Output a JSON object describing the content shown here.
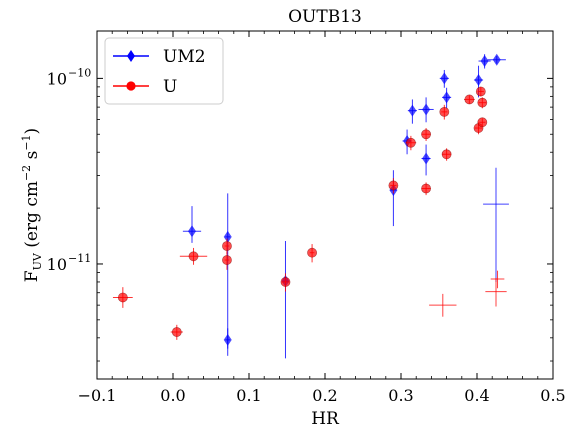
{
  "chart_data": {
    "type": "scatter",
    "title": "OUTB13",
    "xlabel": "HR",
    "ylabel": "F_UV (erg cm^-2 s^-1)",
    "ylabel_display": {
      "main": "F",
      "sub": "UV",
      "rest": " (erg cm",
      "sup1": "−2",
      "mid": " s",
      "sup2": "−1",
      "end": ")"
    },
    "xlim": [
      -0.1,
      0.5
    ],
    "ylim": [
      2.4e-12,
      1.8e-10
    ],
    "yscale": "log",
    "x_ticks": [
      -0.1,
      0.0,
      0.1,
      0.2,
      0.3,
      0.4,
      0.5
    ],
    "x_tick_labels": [
      "−0.1",
      "0.0",
      "0.1",
      "0.2",
      "0.3",
      "0.4",
      "0.5"
    ],
    "y_major_ticks": [
      1e-11,
      1e-10
    ],
    "y_tick_labels": [
      {
        "base": "10",
        "exp": "−11"
      },
      {
        "base": "10",
        "exp": "−10"
      }
    ],
    "legend": {
      "placement": "upper-left",
      "entries": [
        "UM2",
        "U"
      ]
    },
    "series": [
      {
        "name": "UM2",
        "color": "#0000ff",
        "marker": "diamond",
        "points": [
          {
            "x": 0.025,
            "y": 1.5e-11,
            "xerr": 0.012,
            "ylo": 1.3e-11,
            "yhi": 2.05e-11
          },
          {
            "x": 0.072,
            "y": 1.4e-11,
            "xerr": 0.003,
            "ylo": 3.5e-12,
            "yhi": 2.4e-11
          },
          {
            "x": 0.072,
            "y": 3.9e-12,
            "xerr": 0.003,
            "ylo": 3.2e-12,
            "yhi": 4.5e-12
          },
          {
            "x": 0.148,
            "y": 8.1e-12,
            "xerr": 0.003,
            "ylo": 3.1e-12,
            "yhi": 1.33e-11
          },
          {
            "x": 0.29,
            "y": 2.5e-11,
            "xerr": 0.004,
            "ylo": 1.6e-11,
            "yhi": 3.2e-11
          },
          {
            "x": 0.308,
            "y": 4.6e-11,
            "xerr": 0.006,
            "ylo": 3.9e-11,
            "yhi": 5.3e-11
          },
          {
            "x": 0.315,
            "y": 6.7e-11,
            "xerr": 0.006,
            "ylo": 5.7e-11,
            "yhi": 7.7e-11
          },
          {
            "x": 0.333,
            "y": 6.8e-11,
            "xerr": 0.01,
            "ylo": 5.8e-11,
            "yhi": 7.9e-11
          },
          {
            "x": 0.333,
            "y": 3.7e-11,
            "xerr": 0.006,
            "ylo": 3e-11,
            "yhi": 4.4e-11
          },
          {
            "x": 0.357,
            "y": 1e-10,
            "xerr": 0.006,
            "ylo": 8.9e-11,
            "yhi": 1.11e-10
          },
          {
            "x": 0.36,
            "y": 7.9e-11,
            "xerr": 0.006,
            "ylo": 6.9e-11,
            "yhi": 8.9e-11
          },
          {
            "x": 0.402,
            "y": 9.8e-11,
            "xerr": 0.006,
            "ylo": 7.9e-11,
            "yhi": 1.17e-10
          },
          {
            "x": 0.41,
            "y": 1.24e-10,
            "xerr": 0.008,
            "ylo": 1.13e-10,
            "yhi": 1.35e-10
          },
          {
            "x": 0.426,
            "y": 1.26e-10,
            "xerr": 0.012,
            "ylo": 1.2e-10,
            "yhi": 1.32e-10
          },
          {
            "x": 0.425,
            "y": 2.1e-11,
            "xerr": 0.017,
            "ylo": 8e-12,
            "yhi": 3.3e-11,
            "open": true
          }
        ]
      },
      {
        "name": "U",
        "color": "#ff0000",
        "marker": "circle",
        "points": [
          {
            "x": -0.066,
            "y": 6.6e-12,
            "xerr": 0.013,
            "ylo": 5.8e-12,
            "yhi": 7.5e-12
          },
          {
            "x": 0.005,
            "y": 4.3e-12,
            "xerr": 0.008,
            "ylo": 3.9e-12,
            "yhi": 4.7e-12
          },
          {
            "x": 0.027,
            "y": 1.1e-11,
            "xerr": 0.018,
            "ylo": 9.9e-12,
            "yhi": 1.22e-11
          },
          {
            "x": 0.071,
            "y": 1.25e-11,
            "xerr": 0.003,
            "ylo": 1.13e-11,
            "yhi": 1.37e-11
          },
          {
            "x": 0.071,
            "y": 1.05e-11,
            "xerr": 0.003,
            "ylo": 9.3e-12,
            "yhi": 1.17e-11
          },
          {
            "x": 0.148,
            "y": 8e-12,
            "xerr": 0.005,
            "ylo": 7.1e-12,
            "yhi": 8.9e-12
          },
          {
            "x": 0.183,
            "y": 1.15e-11,
            "xerr": 0.003,
            "ylo": 1.02e-11,
            "yhi": 1.28e-11
          },
          {
            "x": 0.29,
            "y": 2.65e-11,
            "xerr": 0.004,
            "ylo": 2.4e-11,
            "yhi": 2.9e-11
          },
          {
            "x": 0.313,
            "y": 4.5e-11,
            "xerr": 0.007,
            "ylo": 4.1e-11,
            "yhi": 4.9e-11
          },
          {
            "x": 0.333,
            "y": 5e-11,
            "xerr": 0.006,
            "ylo": 4.6e-11,
            "yhi": 5.4e-11
          },
          {
            "x": 0.333,
            "y": 2.55e-11,
            "xerr": 0.006,
            "ylo": 2.35e-11,
            "yhi": 2.75e-11
          },
          {
            "x": 0.357,
            "y": 6.6e-11,
            "xerr": 0.004,
            "ylo": 6e-11,
            "yhi": 7.2e-11
          },
          {
            "x": 0.36,
            "y": 3.9e-11,
            "xerr": 0.006,
            "ylo": 3.6e-11,
            "yhi": 4.2e-11
          },
          {
            "x": 0.39,
            "y": 7.7e-11,
            "xerr": 0.007,
            "ylo": 7.3e-11,
            "yhi": 8.1e-11
          },
          {
            "x": 0.402,
            "y": 5.4e-11,
            "xerr": 0.005,
            "ylo": 5e-11,
            "yhi": 5.8e-11
          },
          {
            "x": 0.405,
            "y": 8.5e-11,
            "xerr": 0.004,
            "ylo": 8e-11,
            "yhi": 9e-11
          },
          {
            "x": 0.407,
            "y": 7.4e-11,
            "xerr": 0.005,
            "ylo": 6.9e-11,
            "yhi": 7.9e-11
          },
          {
            "x": 0.407,
            "y": 5.8e-11,
            "xerr": 0.004,
            "ylo": 5.5e-11,
            "yhi": 6.1e-11
          },
          {
            "x": 0.355,
            "y": 6e-12,
            "xerr": 0.018,
            "ylo": 5.2e-12,
            "yhi": 6.9e-12,
            "open": true
          },
          {
            "x": 0.427,
            "y": 8.3e-12,
            "xerr": 0.009,
            "ylo": 7.4e-12,
            "yhi": 9.2e-12,
            "open": true
          },
          {
            "x": 0.425,
            "y": 7.1e-12,
            "xerr": 0.014,
            "ylo": 5.9e-12,
            "yhi": 8.4e-12,
            "open": true
          }
        ]
      }
    ]
  }
}
